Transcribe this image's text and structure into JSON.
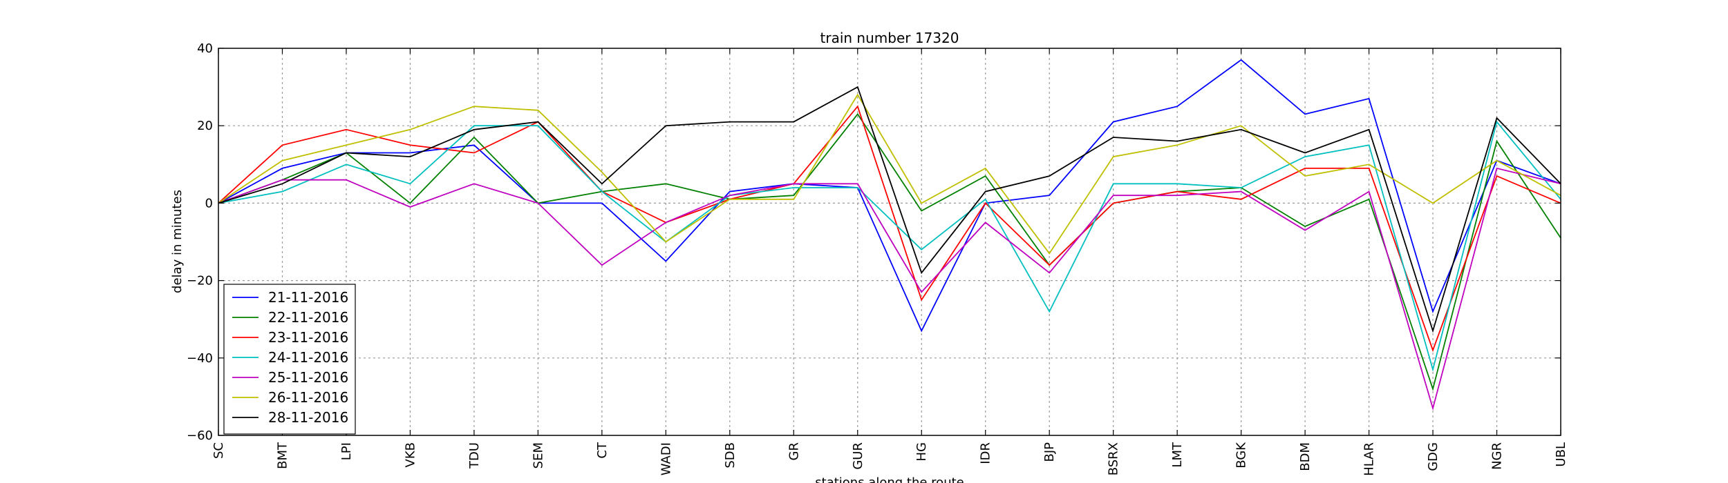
{
  "chart_data": {
    "type": "line",
    "title": "train number 17320",
    "xlabel": "stations along the route",
    "ylabel": "delay in minutes",
    "ylim": [
      -60,
      40
    ],
    "yticks": [
      -60,
      -40,
      -20,
      0,
      20,
      40
    ],
    "grid": true,
    "legend_position": "lower-left",
    "categories": [
      "SC",
      "BMT",
      "LPI",
      "VKB",
      "TDU",
      "SEM",
      "CT",
      "WADI",
      "SDB",
      "GR",
      "GUR",
      "HG",
      "IDR",
      "BJP",
      "BSRX",
      "LMT",
      "BGK",
      "BDM",
      "HLAR",
      "GDG",
      "NGR",
      "UBL"
    ],
    "series": [
      {
        "name": "21-11-2016",
        "color": "#0000ff",
        "values": [
          0,
          9,
          13,
          13,
          15,
          0,
          0,
          -15,
          3,
          5,
          4,
          -33,
          0,
          2,
          21,
          25,
          37,
          23,
          27,
          -28,
          11,
          5
        ]
      },
      {
        "name": "22-11-2016",
        "color": "#008000",
        "values": [
          0,
          6,
          13,
          0,
          17,
          0,
          3,
          5,
          1,
          2,
          23,
          -2,
          7,
          -16,
          0,
          3,
          4,
          -6,
          1,
          -48,
          16,
          -9
        ]
      },
      {
        "name": "23-11-2016",
        "color": "#ff0000",
        "values": [
          0,
          15,
          19,
          15,
          13,
          21,
          3,
          -5,
          1,
          5,
          25,
          -25,
          0,
          -16,
          0,
          3,
          1,
          9,
          9,
          -38,
          7,
          0
        ]
      },
      {
        "name": "24-11-2016",
        "color": "#00bfbf",
        "values": [
          0,
          3,
          10,
          5,
          20,
          20,
          3,
          -10,
          2,
          4,
          4,
          -12,
          1,
          -28,
          5,
          5,
          4,
          12,
          15,
          -43,
          21,
          1
        ]
      },
      {
        "name": "25-11-2016",
        "color": "#bf00bf",
        "values": [
          0,
          6,
          6,
          -1,
          5,
          0,
          -16,
          -5,
          2,
          5,
          5,
          -23,
          -5,
          -18,
          2,
          2,
          3,
          -7,
          3,
          -53,
          9,
          5
        ]
      },
      {
        "name": "26-11-2016",
        "color": "#bfbf00",
        "values": [
          0,
          11,
          15,
          19,
          25,
          24,
          8,
          -10,
          1,
          1,
          28,
          0,
          9,
          -13,
          12,
          15,
          20,
          7,
          10,
          0,
          11,
          2
        ]
      },
      {
        "name": "28-11-2016",
        "color": "#000000",
        "values": [
          0,
          5,
          13,
          12,
          19,
          21,
          5,
          20,
          21,
          21,
          30,
          -18,
          3,
          7,
          17,
          16,
          19,
          13,
          19,
          -33,
          22,
          5
        ]
      }
    ]
  }
}
